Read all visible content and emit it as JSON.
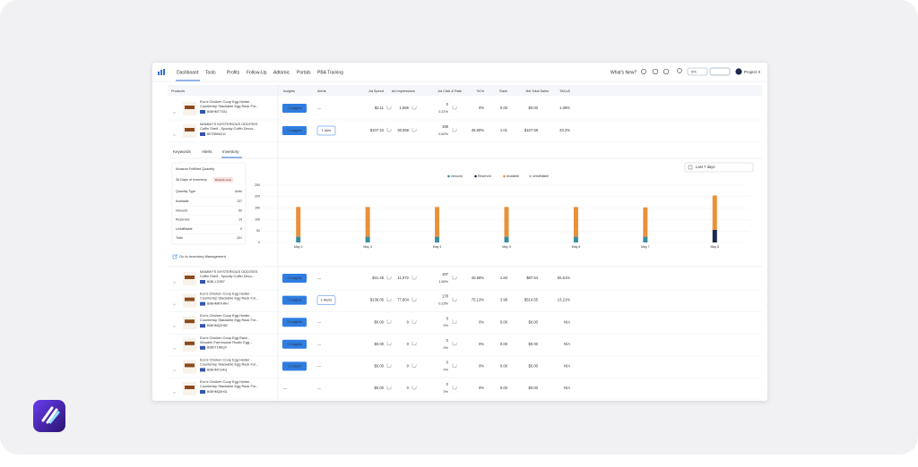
{
  "nav": {
    "items": [
      "Dashboard",
      "Tools",
      "Profits",
      "Follow-Up",
      "Adtomic",
      "Portals",
      "PBA Training"
    ],
    "whats_new": "What's New?",
    "badge": "5%",
    "account": "Project X"
  },
  "table": {
    "headers": [
      "Products",
      "Insights",
      "Alerts",
      "Ad Spend",
      "Ad Impressions",
      "Ad Click & Rate",
      "%Ctr",
      "Rank",
      "Net Total Sales",
      "TACoS"
    ],
    "rows": [
      {
        "name": [
          "Eco's Chicken Coop Egg Holder -",
          "Countertop Stackable Egg Rack For..."
        ],
        "asin": "B08HMT7G51",
        "insights": "1 Insights",
        "alerts": "—",
        "ad_spend": "$3.11",
        "impressions": "1,865",
        "clicks": "0",
        "click_rate": "0.21%",
        "ctr": "0%",
        "rank": "0.00",
        "sales": "$0.00",
        "tacos": "1.08%"
      },
      {
        "name": [
          "MAMMY'S MYSTERIOUS ODDITIES",
          "Coffin Shelf - Spooky Coffin Decor..."
        ],
        "asin": "B07SBH6211",
        "insights": "2 Insights",
        "alerts": "1 Alert",
        "ad_spend": "$107.44",
        "impressions": "36,058",
        "clicks": "198",
        "click_rate": "0.82%",
        "ctr": "45.59%",
        "rank": "1.01",
        "sales": "$107.68",
        "tacos": "33.2%"
      }
    ],
    "rows_after": [
      {
        "name": [
          "MAMMY'S MYSTERIOUS ODDITIES",
          "Coffin Shelf - Spooky Coffin Deco..."
        ],
        "asin": "B08L1J2957",
        "insights": "3 Insights",
        "alerts": "—",
        "ad_spend": "$41.48",
        "impressions": "11,972",
        "clicks": "187",
        "click_rate": "1.56%",
        "ctr": "40.58%",
        "rank": "1.84",
        "sales": "$87.54",
        "tacos": "55.51%"
      },
      {
        "name": [
          "Eco's Chicken Coop Egg Holder -",
          "Countertop Stackable Egg Rack For..."
        ],
        "asin": "B08HMN7HRH",
        "insights": "7 Insights",
        "alerts": "1 Alerts",
        "ad_spend": "$139.05",
        "impressions": "77,804",
        "clicks": "178",
        "click_rate": "0.23%",
        "ctr": "75.13%",
        "rank": "3.98",
        "sales": "$514.55",
        "tacos": "13.21%"
      },
      {
        "name": [
          "Eco's Chicken Coop Egg Holder -",
          "Countertop Stackable Egg Rack For..."
        ],
        "asin": "B08HMQ2H8C",
        "insights": "3 Insights",
        "alerts": "—",
        "ad_spend": "$0.00",
        "impressions": "0",
        "clicks": "0",
        "click_rate": "0%",
        "ctr": "0%",
        "rank": "0.00",
        "sales": "$0.00",
        "tacos": "N/A"
      },
      {
        "name": [
          "Eco's Chicken Coop Egg Rack -",
          "Wooden Farmhouse Rustic Egg..."
        ],
        "asin": "B08KT1N8QV",
        "insights": "1 Insights",
        "alerts": "—",
        "ad_spend": "$0.00",
        "impressions": "0",
        "clicks": "0",
        "click_rate": "0%",
        "ctr": "0%",
        "rank": "0.00",
        "sales": "$0.00",
        "tacos": "N/A"
      },
      {
        "name": [
          "Eco's Chicken Coop Egg Holder -",
          "Countertop Stackable Egg Rack For..."
        ],
        "asin": "B08HMT3J4Q",
        "insights": "1 Insight",
        "alerts": "—",
        "ad_spend": "$0.00",
        "impressions": "0",
        "clicks": "0",
        "click_rate": "0%",
        "ctr": "0%",
        "rank": "0.00",
        "sales": "$0.00",
        "tacos": "N/A"
      },
      {
        "name": [
          "Eco's Chicken Coop Egg Holder -",
          "Countertop Stackable Egg Rack For..."
        ],
        "asin": "B08HMQ4H3L",
        "insights": "—",
        "alerts": "—",
        "ad_spend": "$0.00",
        "impressions": "0",
        "clicks": "0",
        "click_rate": "0%",
        "ctr": "0%",
        "rank": "0.00",
        "sales": "$0.00",
        "tacos": "N/A"
      }
    ]
  },
  "panel": {
    "tabs": [
      "Keywords",
      "Alerts",
      "Inventory"
    ],
    "card_title": "Amazon Fulfilled Quantity",
    "days": "30 Days of Inventory",
    "badge": "Restock soon",
    "qty_header": [
      "Quantity Type",
      "Units"
    ],
    "qty_rows": [
      [
        "Available",
        "137"
      ],
      [
        "Inbound",
        "50"
      ],
      [
        "Reserved",
        "14"
      ],
      [
        "Unfulfillable",
        "0"
      ],
      [
        "Total",
        "201"
      ]
    ],
    "link": "Go to Inventory Management",
    "date_range": "Last 7 days"
  },
  "inventory_chart": {
    "type": "bar",
    "stacked": true,
    "categories": [
      "May 2",
      "May 3",
      "May 4",
      "May 5",
      "May 6",
      "May 7",
      "May 8"
    ],
    "series": [
      {
        "name": "Inbound",
        "color": "#3a8f9c",
        "values": [
          25,
          25,
          25,
          25,
          25,
          25,
          0
        ]
      },
      {
        "name": "Reserved",
        "color": "#1b2a4a",
        "values": [
          0,
          0,
          0,
          0,
          0,
          0,
          55
        ]
      },
      {
        "name": "Available",
        "color": "#e8913a",
        "values": [
          130,
          130,
          130,
          130,
          130,
          128,
          150
        ]
      },
      {
        "name": "Unfulfillable",
        "color": "#b0b4bb",
        "values": [
          0,
          0,
          0,
          0,
          0,
          0,
          0
        ]
      }
    ],
    "ylim": [
      0,
      250
    ],
    "yticks": [
      0,
      50,
      100,
      150,
      200,
      250
    ],
    "grid": true
  }
}
